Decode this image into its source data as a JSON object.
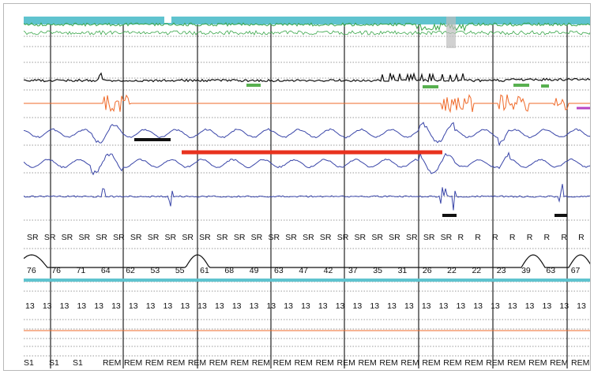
{
  "colors": {
    "background": "#ffffff",
    "epoch_line": "#222222",
    "grid_dots": "#9a9a9a",
    "top_band": "#5fc3cf",
    "top_trace": "#3aa64a",
    "black_trace": "#111111",
    "orange_trace": "#ef6a2a",
    "blue_trace": "#3945a8",
    "red_bar": "#e8321e",
    "green_marks": "#58b050",
    "purple_mark": "#b845c4",
    "cyan_line": "#5fc3cf"
  },
  "rows": {
    "events": [
      "SR",
      "SR",
      "SR",
      "SR",
      "SR",
      "SR",
      "SR",
      "SR",
      "SR",
      "SR",
      "SR",
      "SR",
      "SR",
      "SR",
      "SR",
      "SR",
      "SR",
      "SR",
      "SR",
      "SR",
      "SR",
      "SR",
      "SR",
      "SR",
      "SR",
      "R",
      "R",
      "R",
      "R",
      "R",
      "R",
      "R",
      "R"
    ],
    "spo2": [
      "76",
      "76",
      "71",
      "64",
      "62",
      "53",
      "55",
      "61",
      "68",
      "49",
      "63",
      "47",
      "42",
      "37",
      "35",
      "31",
      "26",
      "22",
      "22",
      "23",
      "39",
      "63",
      "67"
    ],
    "hr": [
      "13",
      "13",
      "13",
      "13",
      "13",
      "13",
      "13",
      "13",
      "13",
      "13",
      "13",
      "13",
      "13",
      "13",
      "13",
      "13",
      "13",
      "13",
      "13",
      "13",
      "13",
      "13",
      "13",
      "13",
      "13",
      "13",
      "13",
      "13",
      "13",
      "13",
      "13",
      "13",
      "13"
    ],
    "stages": [
      "S1",
      "S1",
      "S1",
      "REM",
      "REM",
      "REM",
      "REM",
      "REM",
      "REM",
      "REM",
      "REM",
      "REM",
      "REM",
      "REM",
      "REM",
      "REM",
      "REM",
      "REM",
      "REM",
      "REM",
      "REM",
      "REM",
      "REM",
      "REM",
      "REM",
      "REM"
    ]
  }
}
